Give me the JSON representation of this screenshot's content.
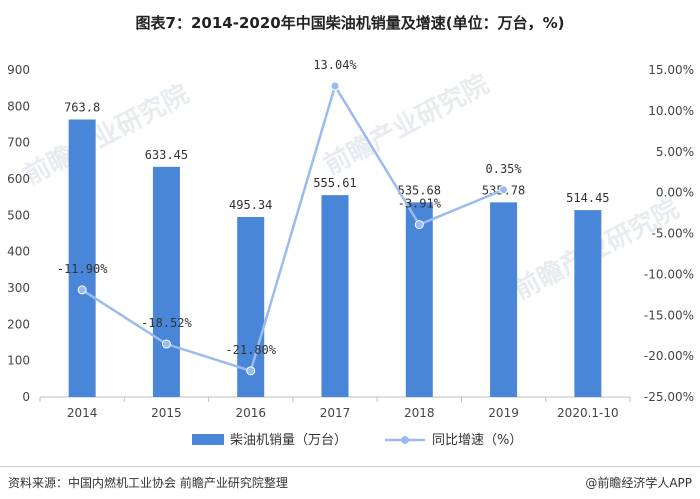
{
  "chart_data": {
    "type": "bar",
    "title": "图表7：2014-2020年中国柴油机销量及增速(单位：万台，%)",
    "categories": [
      "2014",
      "2015",
      "2016",
      "2017",
      "2018",
      "2019",
      "2020.1-10"
    ],
    "series": [
      {
        "name": "柴油机销量（万台）",
        "type": "bar",
        "axis": "left",
        "color": "#4a86d8",
        "values": [
          763.8,
          633.45,
          495.34,
          555.61,
          535.68,
          535.78,
          514.45
        ],
        "labels": [
          "763.8",
          "633.45",
          "495.34",
          "555.61",
          "535.68",
          "535.78",
          "514.45"
        ]
      },
      {
        "name": "同比增速（%）",
        "type": "line",
        "axis": "right",
        "color": "#9bbbf0",
        "values": [
          -11.9,
          -18.52,
          -21.8,
          13.04,
          -3.91,
          0.35,
          null
        ],
        "labels": [
          "-11.90%",
          "-18.52%",
          "-21.80%",
          "13.04%",
          "-3.91%",
          "0.35%",
          null
        ]
      }
    ],
    "y_left": {
      "min": 0,
      "max": 900,
      "step": 100,
      "ticks": [
        "0",
        "100",
        "200",
        "300",
        "400",
        "500",
        "600",
        "700",
        "800",
        "900"
      ]
    },
    "y_right": {
      "min": -25,
      "max": 15,
      "step": 5,
      "ticks": [
        "-25.00%",
        "-20.00%",
        "-15.00%",
        "-10.00%",
        "-5.00%",
        "0.00%",
        "5.00%",
        "10.00%",
        "15.00%"
      ]
    },
    "legend": {
      "position": "bottom"
    },
    "grid": false
  },
  "footer": {
    "source": "资料来源：中国内燃机工业协会 前瞻产业研究院整理",
    "brand": "@前瞻经济学人APP"
  },
  "watermark": "前瞻产业研究院"
}
